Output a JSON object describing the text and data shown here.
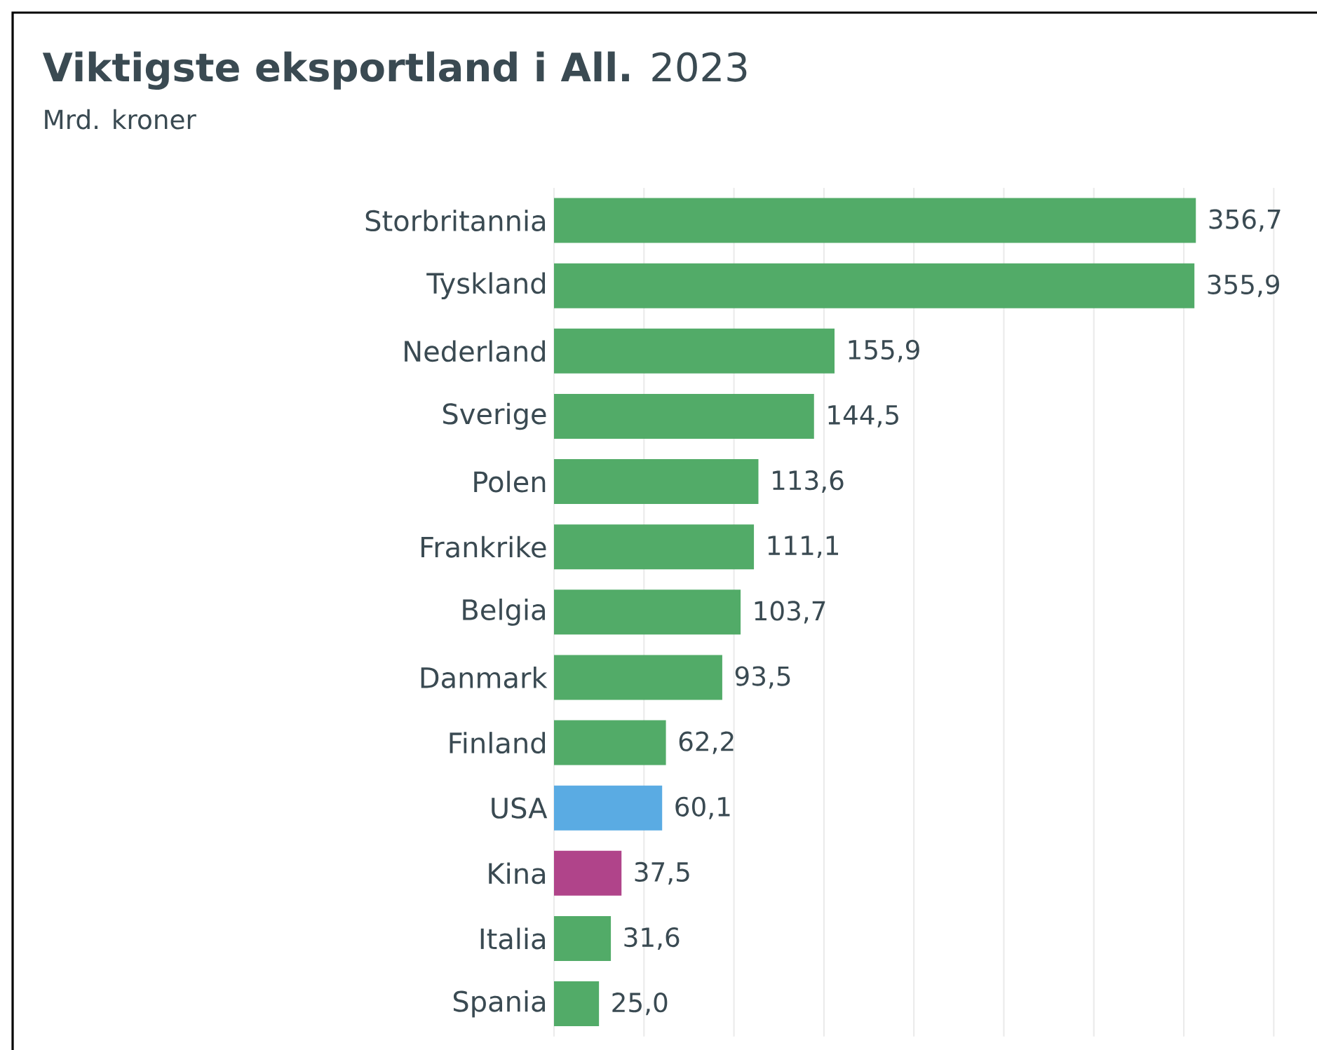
{
  "chart_data": {
    "type": "bar",
    "orientation": "horizontal",
    "title": "**Viktigste eksportland i All.** 2023",
    "subtitle": "Mrd. kroner",
    "categories": [
      "Storbritannia",
      "Tyskland",
      "Nederland",
      "Sverige",
      "Polen",
      "Frankrike",
      "Belgia",
      "Danmark",
      "Finland",
      "USA",
      "Kina",
      "Italia",
      "Spania"
    ],
    "values": [
      356.7,
      355.9,
      155.9,
      144.5,
      113.6,
      111.1,
      103.7,
      93.5,
      62.2,
      60.1,
      37.5,
      31.6,
      25.0
    ],
    "value_labels": [
      "356,7",
      "355,9",
      "155,9",
      "144,5",
      "113,6",
      "111,1",
      "103,7",
      "93,5",
      "62,2",
      "60,1",
      "37,5",
      "31,6",
      "25,0"
    ],
    "colors": [
      "#52ab68",
      "#52ab68",
      "#52ab68",
      "#52ab68",
      "#52ab68",
      "#52ab68",
      "#52ab68",
      "#52ab68",
      "#52ab68",
      "#5aabe3",
      "#b0448a",
      "#52ab68",
      "#52ab68"
    ],
    "grid": "x",
    "tick_labels": "y"
  }
}
